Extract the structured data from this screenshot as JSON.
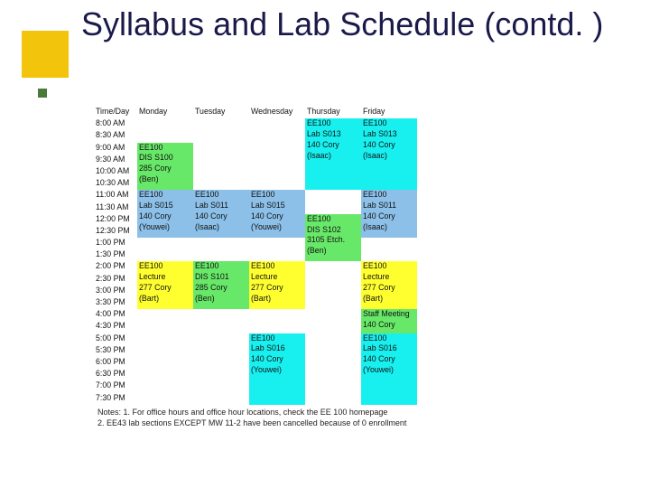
{
  "title": "Syllabus and Lab Schedule (contd. )",
  "colors": {
    "cyan": "#18f0f0",
    "green": "#68e868",
    "blue": "#8cc0e8",
    "yellow": "#ffff30",
    "bggrid": "#ffffff",
    "title_accent": "#f2c40b",
    "title_bullet": "#4a7a3a"
  },
  "headers": [
    "Time/Day",
    "Monday",
    "Tuesday",
    "Wednesday",
    "Thursday",
    "Friday"
  ],
  "times": [
    "8:00 AM",
    "8:30 AM",
    "9:00 AM",
    "9:30 AM",
    "10:00 AM",
    "10:30 AM",
    "11:00 AM",
    "11:30 AM",
    "12:00 PM",
    "12:30 PM",
    "1:00 PM",
    "1:30 PM",
    "2:00 PM",
    "2:30 PM",
    "3:00 PM",
    "3:30 PM",
    "4:00 PM",
    "4:30 PM",
    "5:00 PM",
    "5:30 PM",
    "6:00 PM",
    "6:30 PM",
    "7:00 PM",
    "7:30 PM"
  ],
  "blocks": [
    {
      "day": 4,
      "row": 0,
      "span": 6,
      "color": "cyan",
      "lines": [
        "EE100",
        "Lab S013",
        "140 Cory",
        "(Isaac)"
      ]
    },
    {
      "day": 5,
      "row": 0,
      "span": 6,
      "color": "cyan",
      "lines": [
        "EE100",
        "Lab S013",
        "140 Cory",
        "(Isaac)"
      ]
    },
    {
      "day": 1,
      "row": 2,
      "span": 4,
      "color": "green",
      "lines": [
        "EE100",
        "DIS S100",
        "285 Cory",
        "(Ben)"
      ]
    },
    {
      "day": 1,
      "row": 6,
      "span": 4,
      "color": "blue",
      "lines": [
        "EE100",
        "Lab S015",
        "140 Cory",
        "(Youwei)"
      ]
    },
    {
      "day": 2,
      "row": 6,
      "span": 4,
      "color": "blue",
      "lines": [
        "EE100",
        "Lab S011",
        "140 Cory",
        "(Isaac)"
      ]
    },
    {
      "day": 3,
      "row": 6,
      "span": 4,
      "color": "blue",
      "lines": [
        "EE100",
        "Lab S015",
        "140 Cory",
        "(Youwei)"
      ]
    },
    {
      "day": 5,
      "row": 6,
      "span": 4,
      "color": "blue",
      "lines": [
        "EE100",
        "Lab S011",
        "140 Cory",
        "(Isaac)"
      ]
    },
    {
      "day": 4,
      "row": 8,
      "span": 4,
      "color": "green",
      "lines": [
        "EE100",
        "DIS S102",
        "3105 Etch.",
        "(Ben)"
      ]
    },
    {
      "day": 1,
      "row": 12,
      "span": 4,
      "color": "yellow",
      "lines": [
        "EE100",
        "Lecture",
        "277 Cory",
        "(Bart)"
      ]
    },
    {
      "day": 2,
      "row": 12,
      "span": 4,
      "color": "green",
      "lines": [
        "EE100",
        "DIS S101",
        "285 Cory",
        "(Ben)"
      ]
    },
    {
      "day": 3,
      "row": 12,
      "span": 4,
      "color": "yellow",
      "lines": [
        "EE100",
        "Lecture",
        "277 Cory",
        "(Bart)"
      ]
    },
    {
      "day": 5,
      "row": 12,
      "span": 4,
      "color": "yellow",
      "lines": [
        "EE100",
        "Lecture",
        "277 Cory",
        "(Bart)"
      ]
    },
    {
      "day": 5,
      "row": 16,
      "span": 2,
      "color": "green",
      "lines": [
        "Staff Meeting",
        "140 Cory"
      ]
    },
    {
      "day": 3,
      "row": 18,
      "span": 6,
      "color": "cyan",
      "lines": [
        "EE100",
        "Lab S016",
        "140 Cory",
        "(Youwei)"
      ]
    },
    {
      "day": 5,
      "row": 18,
      "span": 6,
      "color": "cyan",
      "lines": [
        "EE100",
        "Lab S016",
        "140 Cory",
        "(Youwei)"
      ]
    }
  ],
  "notes": [
    "Notes: 1.  For office hours and office hour locations, check the EE 100 homepage",
    "            2.  EE43 lab sections EXCEPT MW 11-2 have been cancelled because of 0 enrollment"
  ]
}
